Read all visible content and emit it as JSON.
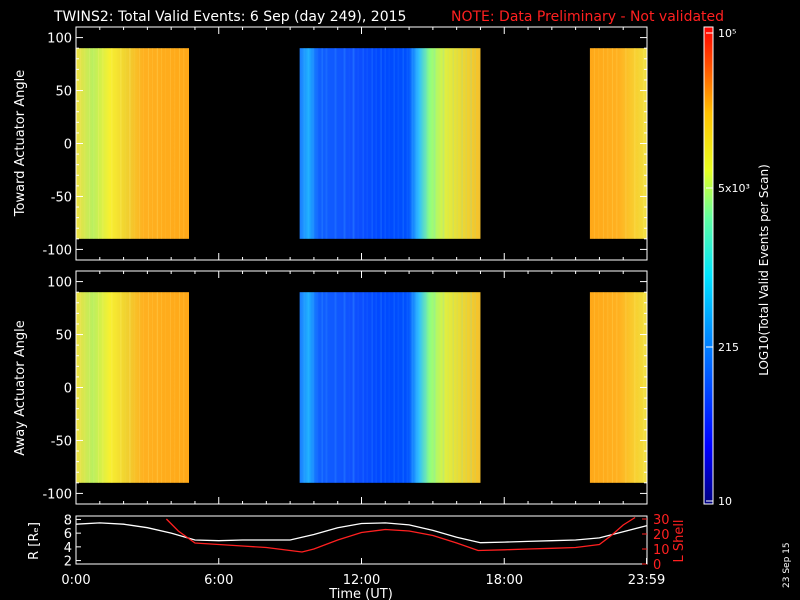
{
  "title": {
    "main": "TWINS2: Total Valid Events:  6 Sep (day 249), 2015",
    "note": "NOTE: Data Preliminary - Not validated"
  },
  "colors": {
    "background": "#000000",
    "axis": "#ffffff",
    "note": "#ff2020",
    "lshell": "#ff2020",
    "radius": "#ffffff"
  },
  "chart_data": [
    {
      "type": "heatmap",
      "name": "toward",
      "ylabel": "Toward Actuator Angle",
      "ylim": [
        -110,
        110
      ],
      "yticks": [
        -100,
        -50,
        0,
        50,
        100
      ],
      "data_ylim": [
        -90,
        90
      ],
      "xlim_hours": [
        0,
        24
      ],
      "data_segments": [
        {
          "start": 0.0,
          "end": 4.75,
          "level": "high"
        },
        {
          "start": 9.4,
          "end": 17.0,
          "level": "low"
        },
        {
          "start": 21.6,
          "end": 24.0,
          "level": "high"
        }
      ]
    },
    {
      "type": "heatmap",
      "name": "away",
      "ylabel": "Away Actuator Angle",
      "ylim": [
        -110,
        110
      ],
      "yticks": [
        -100,
        -50,
        0,
        50,
        100
      ],
      "data_ylim": [
        -90,
        90
      ],
      "xlim_hours": [
        0,
        24
      ],
      "data_segments": [
        {
          "start": 0.0,
          "end": 4.75,
          "level": "high"
        },
        {
          "start": 9.4,
          "end": 17.0,
          "level": "low"
        },
        {
          "start": 21.6,
          "end": 24.0,
          "level": "high"
        }
      ]
    },
    {
      "type": "line",
      "name": "orbit",
      "ylabel_left": "R [Rₑ]",
      "ylabel_right": "L Shell",
      "yticks_left": [
        2,
        4,
        6,
        8
      ],
      "ylim_left": [
        1.5,
        8.5
      ],
      "yticks_right": [
        0,
        10,
        20,
        30
      ],
      "ylim_right": [
        0,
        32
      ],
      "xticks": [
        "0:00",
        "6:00",
        "12:00",
        "18:00",
        "23:59"
      ],
      "xtick_hours": [
        0,
        6,
        12,
        18,
        23.98
      ],
      "xlabel": "Time (UT)",
      "series": [
        {
          "name": "R",
          "x": [
            0,
            1,
            2,
            3,
            4,
            5,
            6,
            7,
            8,
            9,
            10,
            11,
            12,
            13,
            14,
            15,
            16,
            17,
            18,
            19,
            20,
            21,
            22,
            23,
            24
          ],
          "values": [
            7.3,
            7.5,
            7.3,
            6.8,
            6.0,
            5.0,
            4.9,
            5.0,
            5.0,
            5.0,
            5.8,
            6.8,
            7.4,
            7.5,
            7.2,
            6.4,
            5.4,
            4.6,
            4.7,
            4.8,
            4.9,
            5.0,
            5.3,
            6.2,
            7.1
          ]
        },
        {
          "name": "L Shell",
          "x": [
            3.8,
            4.3,
            5.0,
            6,
            7,
            8,
            9,
            9.5,
            10,
            11,
            12,
            13,
            14,
            15,
            16,
            16.9,
            18,
            19,
            20,
            21,
            22,
            22.5,
            23,
            23.5
          ],
          "values": [
            30,
            22,
            14,
            13,
            12,
            11,
            9,
            8,
            10,
            16,
            21,
            23,
            22,
            19,
            14,
            9,
            9.5,
            10,
            10.5,
            11,
            13,
            19,
            26,
            31
          ]
        }
      ]
    }
  ],
  "colorbar": {
    "label": "LOG10(Total Valid Events per Scan)",
    "tick_labels": [
      "10⁵",
      "5x10³",
      "215",
      "10"
    ]
  },
  "stamp": "23 Sep 15"
}
